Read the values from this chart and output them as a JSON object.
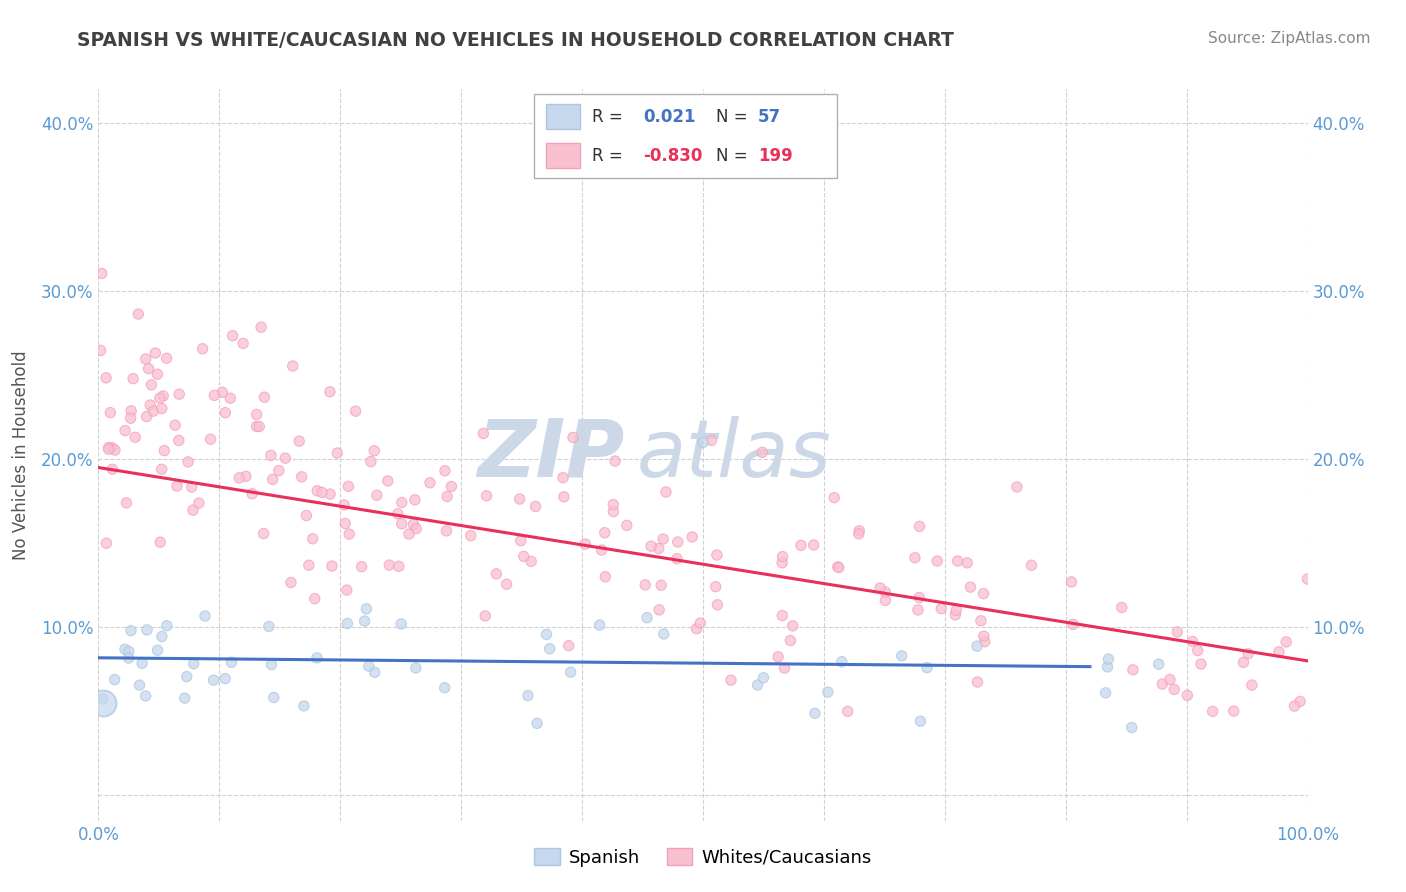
{
  "title": "SPANISH VS WHITE/CAUCASIAN NO VEHICLES IN HOUSEHOLD CORRELATION CHART",
  "source": "Source: ZipAtlas.com",
  "ylabel": "No Vehicles in Household",
  "watermark_zip": "ZIP",
  "watermark_atlas": "atlas",
  "legend_r_spanish": "0.021",
  "legend_n_spanish": "57",
  "legend_r_white": "-0.830",
  "legend_n_white": "199",
  "xmin": 0.0,
  "xmax": 1.0,
  "ymin": -0.015,
  "ymax": 0.42,
  "yticks": [
    0.0,
    0.1,
    0.2,
    0.3,
    0.4
  ],
  "ytick_labels": [
    "",
    "10.0%",
    "20.0%",
    "30.0%",
    "40.0%"
  ],
  "xticks": [
    0.0,
    0.1,
    0.2,
    0.3,
    0.4,
    0.5,
    0.6,
    0.7,
    0.8,
    0.9,
    1.0
  ],
  "xtick_labels": [
    "0.0%",
    "",
    "",
    "",
    "",
    "",
    "",
    "",
    "",
    "",
    "100.0%"
  ],
  "color_spanish": "#adc6e0",
  "color_spanish_fill": "#c5d8ed",
  "color_spanish_line": "#4472c4",
  "color_white": "#f4a0b8",
  "color_white_fill": "#f9c0d0",
  "color_white_line": "#e8305a",
  "title_color": "#404040",
  "axis_color": "#5b9bd5",
  "grid_color": "#d0d0d0",
  "watermark_color": "#ccd8e8",
  "bottom_legend_label1": "Spanish",
  "bottom_legend_label2": "Whites/Caucasians"
}
